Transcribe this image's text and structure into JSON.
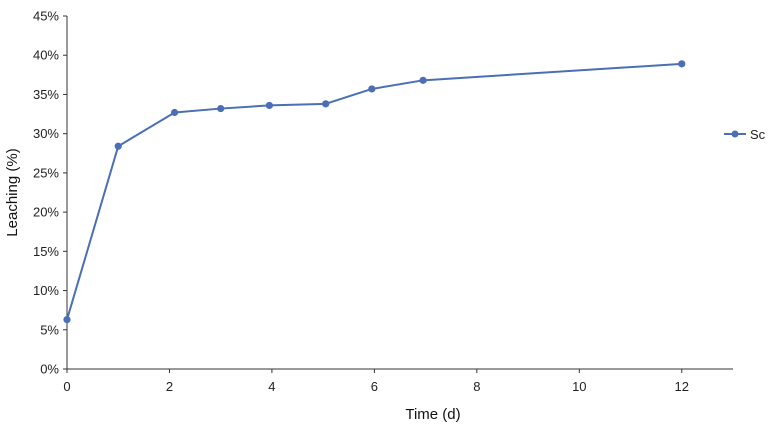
{
  "chart_data": {
    "type": "line",
    "xlabel": "Time (d)",
    "ylabel": "Leaching (%)",
    "xlim": [
      0,
      13
    ],
    "xticks": [
      0,
      2,
      4,
      6,
      8,
      10,
      12
    ],
    "ylim": [
      0,
      45
    ],
    "yticks": [
      0,
      5,
      10,
      15,
      20,
      25,
      30,
      35,
      40,
      45
    ],
    "y_tick_format": "percent",
    "grid": false,
    "legend_position": "right",
    "series": [
      {
        "name": "Sc",
        "color": "#4a6fb5",
        "x": [
          0,
          1,
          2.1,
          3,
          3.95,
          5.05,
          5.95,
          6.95,
          12
        ],
        "y": [
          6.3,
          28.4,
          32.7,
          33.2,
          33.6,
          33.8,
          35.7,
          36.8,
          38.9
        ]
      }
    ]
  }
}
